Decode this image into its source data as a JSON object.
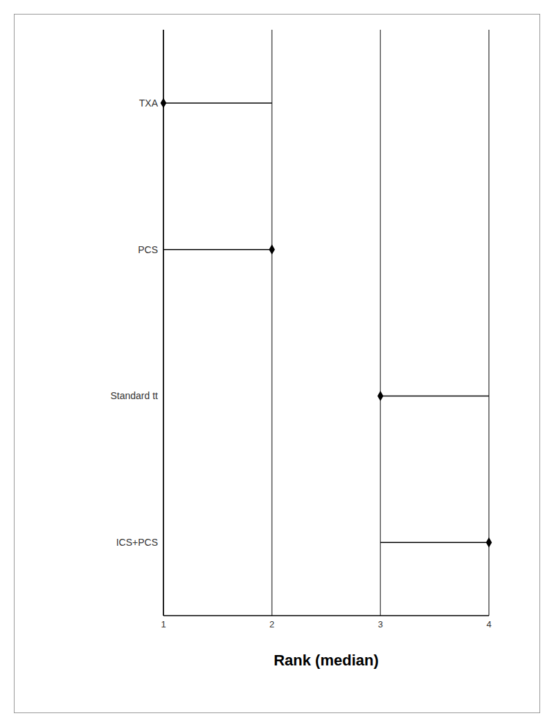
{
  "chart_data": {
    "type": "scatter",
    "x_label": "Rank (median)",
    "categories": [
      "TXA",
      "PCS",
      "Standard tt",
      "ICS+PCS"
    ],
    "values": [
      1,
      2,
      3,
      4
    ],
    "ranges": [
      [
        1,
        2
      ],
      [
        1,
        2
      ],
      [
        3,
        4
      ],
      [
        3,
        4
      ]
    ],
    "xlim": [
      1,
      4
    ],
    "xticks": [
      1,
      2,
      3,
      4
    ],
    "orientation": "horizontal",
    "grid": true,
    "marker": "diamond",
    "color": "#000000"
  }
}
